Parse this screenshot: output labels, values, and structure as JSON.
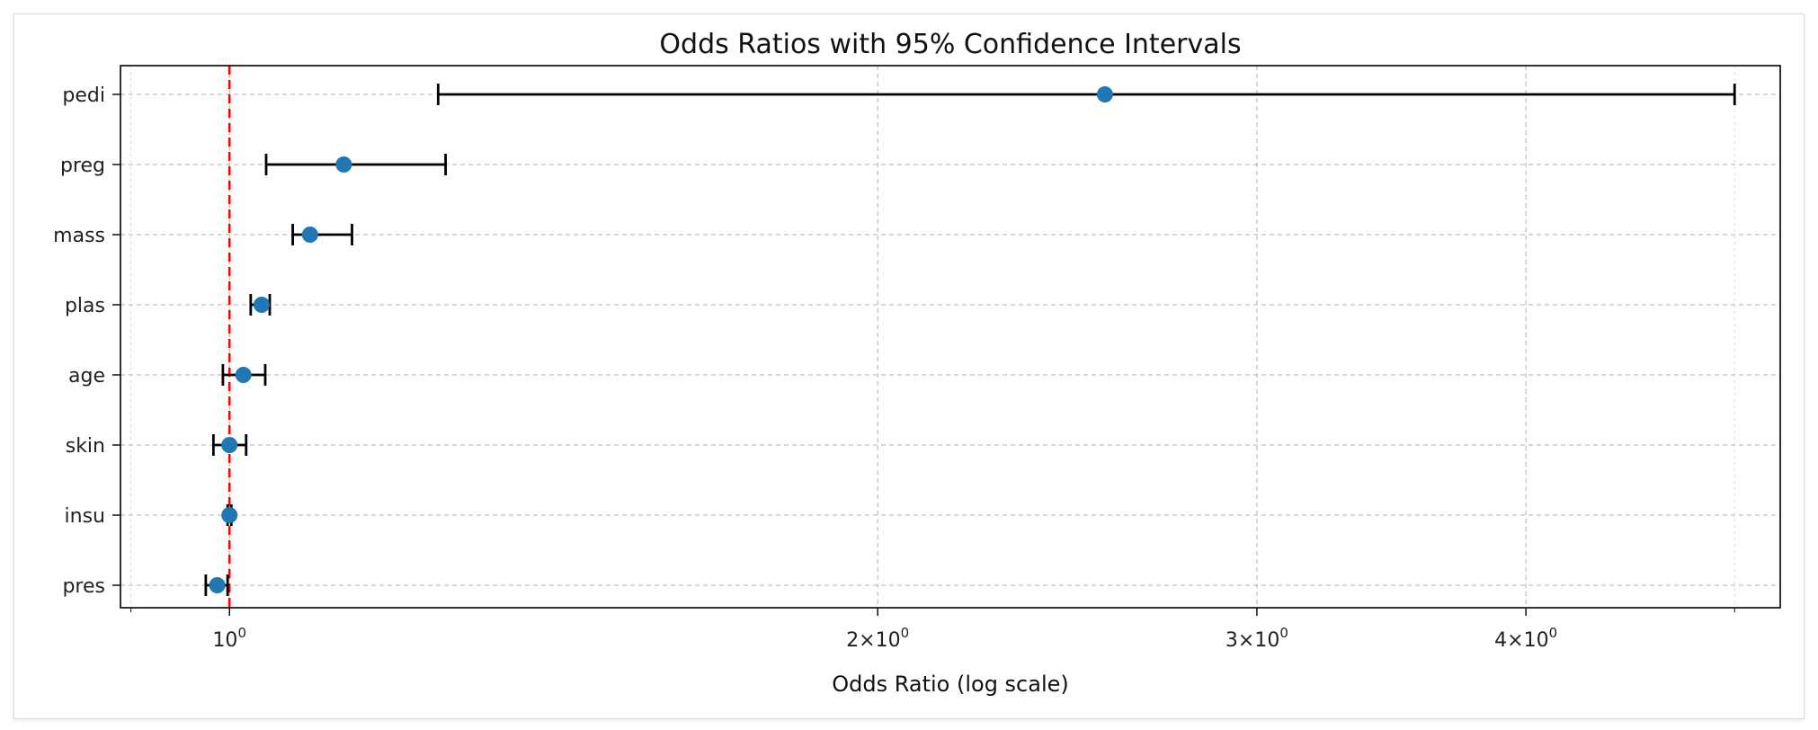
{
  "chart_data": {
    "type": "scatter",
    "title": "Odds Ratios with 95% Confidence Intervals",
    "xlabel": "Odds Ratio (log scale)",
    "ylabel": "",
    "x_scale": "log",
    "xlim": [
      0.89,
      5.25
    ],
    "x_ticks": [
      {
        "value": 1,
        "base": "10",
        "exp": "0"
      },
      {
        "value": 2,
        "coef": "2",
        "base": "10",
        "exp": "0"
      },
      {
        "value": 3,
        "coef": "3",
        "base": "10",
        "exp": "0"
      },
      {
        "value": 4,
        "coef": "4",
        "base": "10",
        "exp": "0"
      }
    ],
    "x_minor_ticks": [
      0.9,
      5
    ],
    "categories": [
      "pedi",
      "preg",
      "mass",
      "plas",
      "age",
      "skin",
      "insu",
      "pres"
    ],
    "series": [
      {
        "odds_ratio": [
          2.55,
          1.13,
          1.09,
          1.035,
          1.015,
          1.0,
          1.0,
          0.987
        ],
        "ci_low": [
          1.25,
          1.04,
          1.07,
          1.023,
          0.993,
          0.983,
          0.998,
          0.975
        ],
        "ci_high": [
          5.0,
          1.26,
          1.14,
          1.044,
          1.039,
          1.018,
          1.002,
          0.998
        ],
        "color": "#1f77b4"
      }
    ],
    "reference_line": {
      "x": 1,
      "color": "#ff0000",
      "style": "dashed"
    },
    "errorbar_color": "#000000",
    "grid": true
  }
}
